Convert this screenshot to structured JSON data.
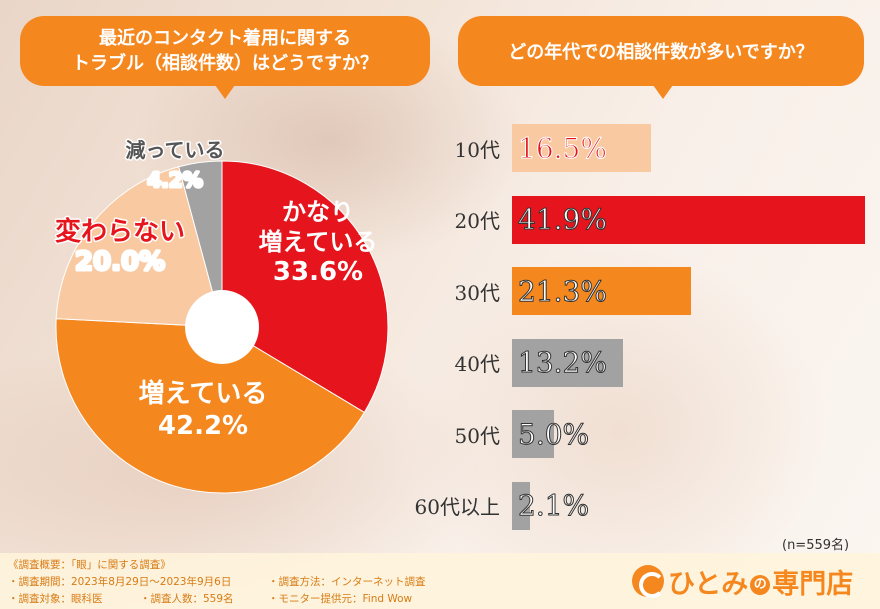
{
  "left_question": {
    "line1": "最近のコンタクト着用に関する",
    "line2": "トラブル（相談件数）はどうですか？"
  },
  "right_question": "どの年代での相談件数が多いですか？",
  "chart_data": [
    {
      "type": "pie",
      "title": "最近のコンタクト着用に関するトラブル（相談件数）はどうですか？",
      "slices": [
        {
          "label_lines": [
            "かなり",
            "増えている"
          ],
          "value": 33.6,
          "value_text": "33.6%",
          "color": "#e6151d"
        },
        {
          "label_lines": [
            "増えている"
          ],
          "value": 42.2,
          "value_text": "42.2%",
          "color": "#f5871f"
        },
        {
          "label_lines": [
            "変わらない"
          ],
          "value": 20.0,
          "value_text": "20.0%",
          "color": "#f9c9a1"
        },
        {
          "label_lines": [
            "減っている"
          ],
          "value": 4.2,
          "value_text": "4.2%",
          "color": "#a2a2a2"
        }
      ]
    },
    {
      "type": "bar",
      "orientation": "horizontal",
      "title": "どの年代での相談件数が多いですか？",
      "categories": [
        "10代",
        "20代",
        "30代",
        "40代",
        "50代",
        "60代以上"
      ],
      "values": [
        16.5,
        41.9,
        21.3,
        13.2,
        5.0,
        2.1
      ],
      "value_texts": [
        "16.5%",
        "41.9%",
        "21.3%",
        "13.2%",
        "5.0%",
        "2.1%"
      ],
      "colors": [
        "#f9c9a1",
        "#e6151d",
        "#f5871f",
        "#a2a2a2",
        "#a2a2a2",
        "#a2a2a2"
      ],
      "xlim": [
        0,
        41.9
      ]
    }
  ],
  "sample_note": "(n=559名)",
  "footer": {
    "title": "《調査概要：「眼」に関する調査》",
    "period": "・調査期間：2023年8月29日〜2023年9月6日",
    "method": "・調査方法：インターネット調査",
    "target": "・調査対象：眼科医",
    "count": "・調査人数：559名",
    "monitor": "・モニター提供元：Find Wow"
  },
  "logo": {
    "part1": "ひとみ",
    "part2": "の",
    "part3": "専門店"
  }
}
